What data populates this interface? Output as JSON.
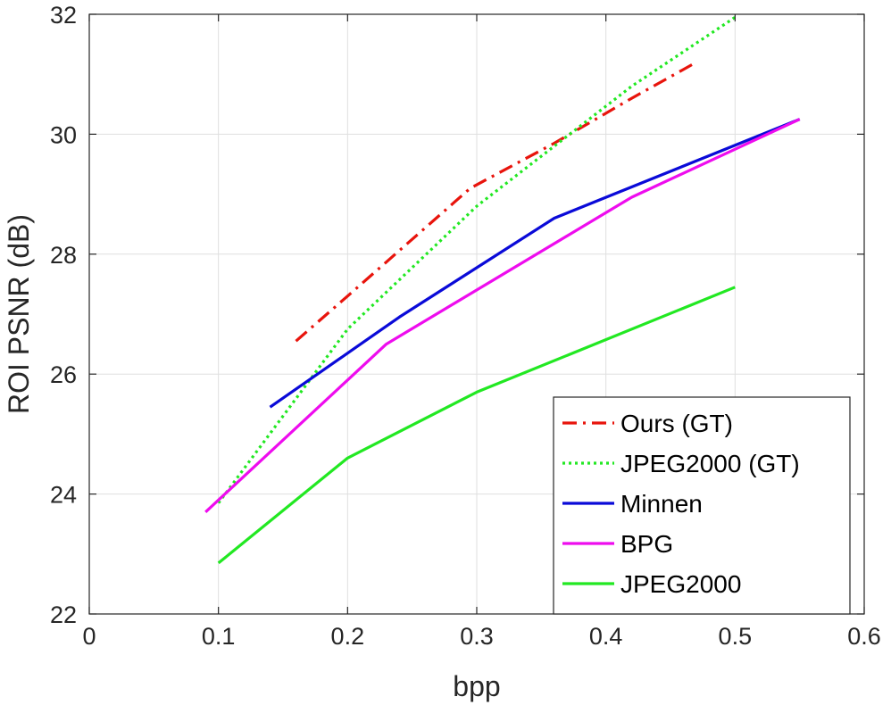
{
  "chart_data": {
    "type": "line",
    "xlabel": "bpp",
    "ylabel": "ROI PSNR (dB)",
    "xlim": [
      0,
      0.6
    ],
    "ylim": [
      22,
      32
    ],
    "xticks": [
      0,
      0.1,
      0.2,
      0.3,
      0.4,
      0.5,
      0.6
    ],
    "xtick_labels": [
      "0",
      "0.1",
      "0.2",
      "0.3",
      "0.4",
      "0.5",
      "0.6"
    ],
    "yticks": [
      22,
      24,
      26,
      28,
      30,
      32
    ],
    "ytick_labels": [
      "22",
      "24",
      "26",
      "28",
      "30",
      "32"
    ],
    "grid": true,
    "legend_position": "bottom-right",
    "series": [
      {
        "name": "Ours (GT)",
        "color": "#e8140c",
        "style": "dashdot",
        "x": [
          0.16,
          0.2,
          0.295,
          0.36,
          0.42,
          0.47
        ],
        "y": [
          26.55,
          27.3,
          29.1,
          29.85,
          30.6,
          31.2
        ]
      },
      {
        "name": "JPEG2000 (GT)",
        "color": "#22e822",
        "style": "dotted",
        "x": [
          0.1,
          0.2,
          0.3,
          0.36,
          0.42,
          0.5
        ],
        "y": [
          23.85,
          26.75,
          28.8,
          29.8,
          30.8,
          31.95
        ]
      },
      {
        "name": "Minnen",
        "color": "#0a0ad8",
        "style": "solid",
        "x": [
          0.14,
          0.24,
          0.36,
          0.55
        ],
        "y": [
          25.45,
          26.95,
          28.6,
          30.25
        ]
      },
      {
        "name": "BPG",
        "color": "#ee0cee",
        "style": "solid",
        "x": [
          0.09,
          0.2,
          0.23,
          0.42,
          0.55
        ],
        "y": [
          23.7,
          25.9,
          26.5,
          28.95,
          30.25
        ]
      },
      {
        "name": "JPEG2000",
        "color": "#22e822",
        "style": "solid",
        "x": [
          0.1,
          0.2,
          0.3,
          0.5
        ],
        "y": [
          22.85,
          24.6,
          25.7,
          27.45
        ]
      }
    ]
  }
}
